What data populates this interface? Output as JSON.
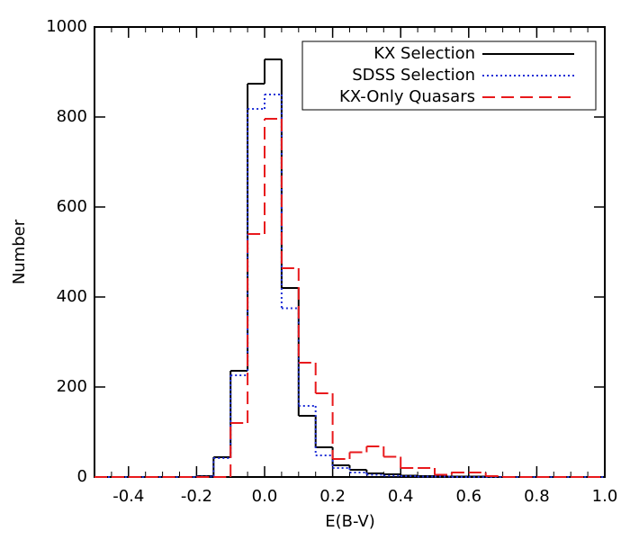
{
  "chart_data": {
    "type": "histogram",
    "xlabel": "E(B-V)",
    "ylabel": "Number",
    "bins": [
      -0.5,
      -0.45,
      -0.4,
      -0.35,
      -0.3,
      -0.25,
      -0.2,
      -0.15,
      -0.1,
      -0.05,
      0,
      0.05,
      0.1,
      0.15,
      0.2,
      0.25,
      0.3,
      0.35,
      0.4,
      0.45,
      0.5,
      0.55,
      0.6,
      0.65,
      0.7,
      0.75,
      0.8,
      0.85,
      0.9,
      0.95,
      1.0
    ],
    "series": [
      {
        "name": "KX Selection",
        "color": "#000000",
        "style": "solid",
        "values": [
          0,
          0,
          0,
          0,
          0,
          0,
          2,
          44,
          236,
          874,
          928,
          420,
          136,
          66,
          26,
          16,
          8,
          6,
          3,
          2,
          1,
          1,
          1,
          0,
          0,
          0,
          0,
          0,
          0,
          0
        ]
      },
      {
        "name": "SDSS Selection",
        "color": "#1f2fd6",
        "style": "dotted",
        "values": [
          0,
          0,
          0,
          0,
          0,
          0,
          1,
          42,
          226,
          818,
          850,
          375,
          158,
          48,
          20,
          10,
          5,
          3,
          2,
          1,
          1,
          0,
          0,
          0,
          0,
          0,
          0,
          0,
          0,
          0
        ]
      },
      {
        "name": "KX-Only Quasars",
        "color": "#e8191c",
        "style": "dashed",
        "values": [
          0,
          0,
          0,
          0,
          0,
          0,
          0,
          0,
          120,
          540,
          796,
          464,
          254,
          186,
          40,
          55,
          68,
          45,
          20,
          20,
          5,
          10,
          10,
          2,
          0,
          0,
          0,
          0,
          0,
          0
        ]
      }
    ],
    "xlim": [
      -0.5,
      1.0
    ],
    "ylim": [
      0,
      1000
    ],
    "xticks": [
      -0.4,
      -0.2,
      {
        "value": 0,
        "label": "0.0"
      },
      0.2,
      0.4,
      0.6,
      0.8,
      {
        "value": 1,
        "label": "1.0"
      }
    ],
    "yticks": [
      0,
      200,
      400,
      600,
      800,
      1000
    ],
    "legend": "upper right"
  }
}
